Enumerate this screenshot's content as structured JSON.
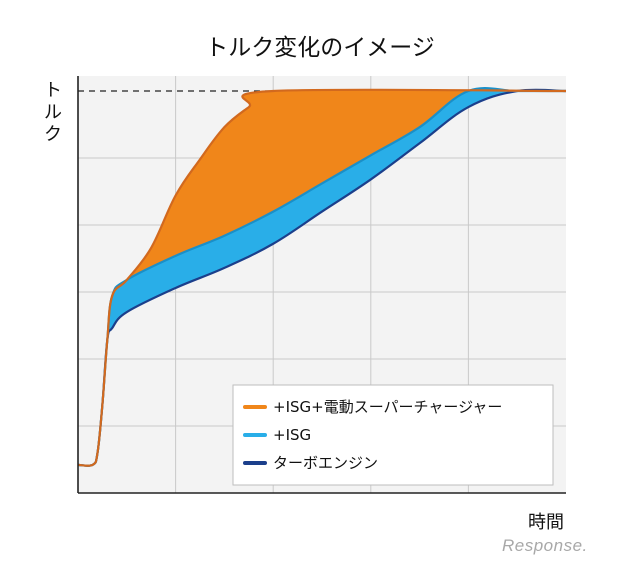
{
  "chart_data": {
    "type": "area",
    "title": "トルク変化のイメージ",
    "ylabel": "トルク",
    "xlabel": "時間",
    "grid": true,
    "legend_placement": "bottom-right",
    "series": [
      {
        "name": "+ISG+電動スーパーチャージャー",
        "color": "#f0861a",
        "edge": "#d2691e",
        "x": [
          0,
          3,
          4,
          5,
          6,
          7,
          10,
          15,
          20,
          25,
          30,
          35,
          40,
          100
        ],
        "y": [
          0.07,
          0.07,
          0.1,
          0.22,
          0.38,
          0.49,
          0.53,
          0.61,
          0.74,
          0.83,
          0.91,
          0.96,
          1.0,
          1.0
        ]
      },
      {
        "name": "+ISG",
        "color": "#29aee8",
        "edge": "#1a8fc8",
        "x": [
          0,
          3,
          4,
          5,
          6,
          7,
          10,
          20,
          30,
          40,
          50,
          60,
          70,
          80,
          90,
          100
        ],
        "y": [
          0.07,
          0.07,
          0.1,
          0.22,
          0.38,
          0.49,
          0.53,
          0.59,
          0.64,
          0.7,
          0.77,
          0.84,
          0.91,
          1.0,
          1.0,
          1.0
        ]
      },
      {
        "name": "ターボエンジン",
        "color": "#1b3f8b",
        "edge": "#1b3f8b",
        "x": [
          0,
          3,
          4,
          5,
          6,
          7,
          10,
          20,
          30,
          40,
          50,
          60,
          70,
          80,
          90,
          100
        ],
        "y": [
          0.07,
          0.07,
          0.1,
          0.22,
          0.38,
          0.41,
          0.45,
          0.51,
          0.56,
          0.62,
          0.7,
          0.78,
          0.87,
          0.96,
          1.0,
          1.0
        ]
      }
    ],
    "xlim": [
      0,
      100
    ],
    "ylim": [
      0,
      1.0
    ]
  },
  "watermark": "Response."
}
